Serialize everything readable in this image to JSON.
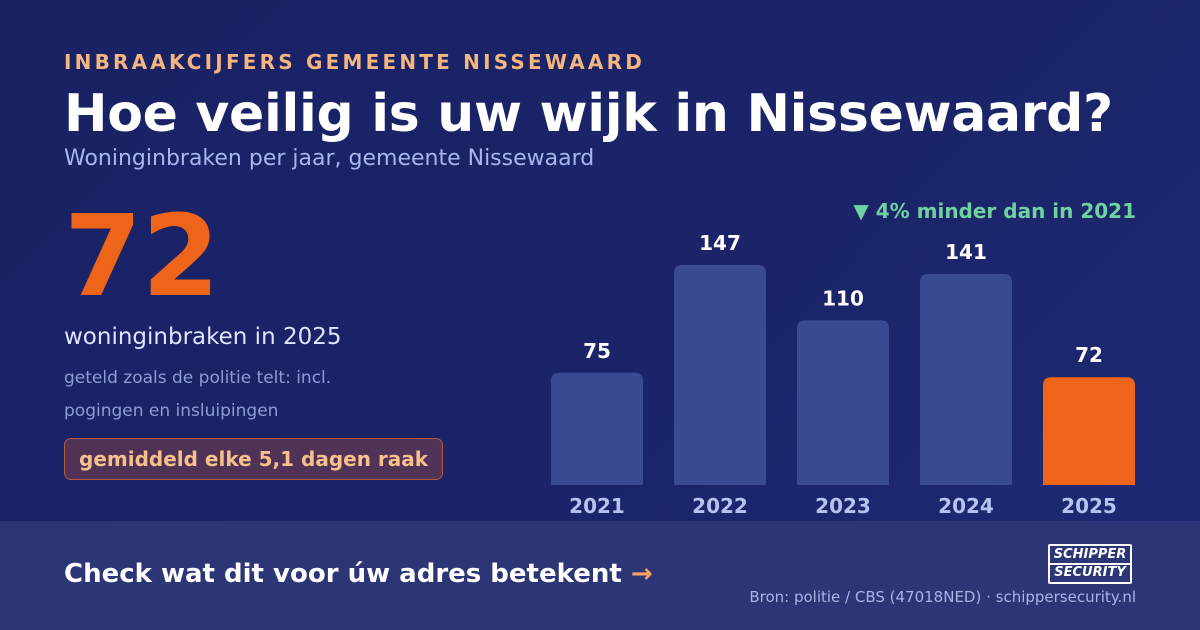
{
  "header": {
    "eyebrow": "INBRAAKCIJFERS GEMEENTE NISSEWAARD",
    "title": "Hoe veilig is uw wijk in Nissewaard?",
    "subtitle": "Woninginbraken per jaar, gemeente Nissewaard"
  },
  "highlight": {
    "number": "72",
    "label": "woninginbraken in 2025",
    "note": "geteld zoals de politie telt: incl. pogingen en insluipingen",
    "badge": "gemiddeld elke 5,1 dagen raak"
  },
  "change_note": "▼ 4% minder dan in 2021",
  "chart_data": {
    "type": "bar",
    "categories": [
      "2021",
      "2022",
      "2023",
      "2024",
      "2025"
    ],
    "values": [
      75,
      147,
      110,
      141,
      72
    ],
    "highlight_category": "2025",
    "ylim": [
      0,
      147
    ],
    "grid": false,
    "colors": {
      "bar": "#3a4a91",
      "highlight": "#ee6418"
    }
  },
  "footer": {
    "cta": "Check wat dit voor úw adres betekent",
    "cta_arrow": "→",
    "source": "Bron: politie / CBS (47018NED) · schippersecurity.nl",
    "logo_line1": "SCHIPPER",
    "logo_line2": "SECURITY"
  }
}
